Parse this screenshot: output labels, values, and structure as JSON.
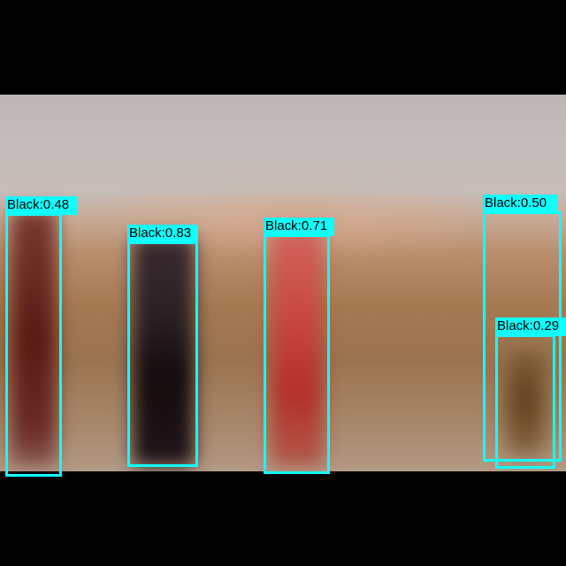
{
  "detections": [
    {
      "label": "Black:0.48"
    },
    {
      "label": "Black:0.83"
    },
    {
      "label": "Black:0.71"
    },
    {
      "label": "Black:0.50"
    },
    {
      "label": "Black:0.29"
    }
  ],
  "colors": {
    "box": "#11ffff",
    "label_text": "#000000",
    "letterbox": "#000000"
  }
}
